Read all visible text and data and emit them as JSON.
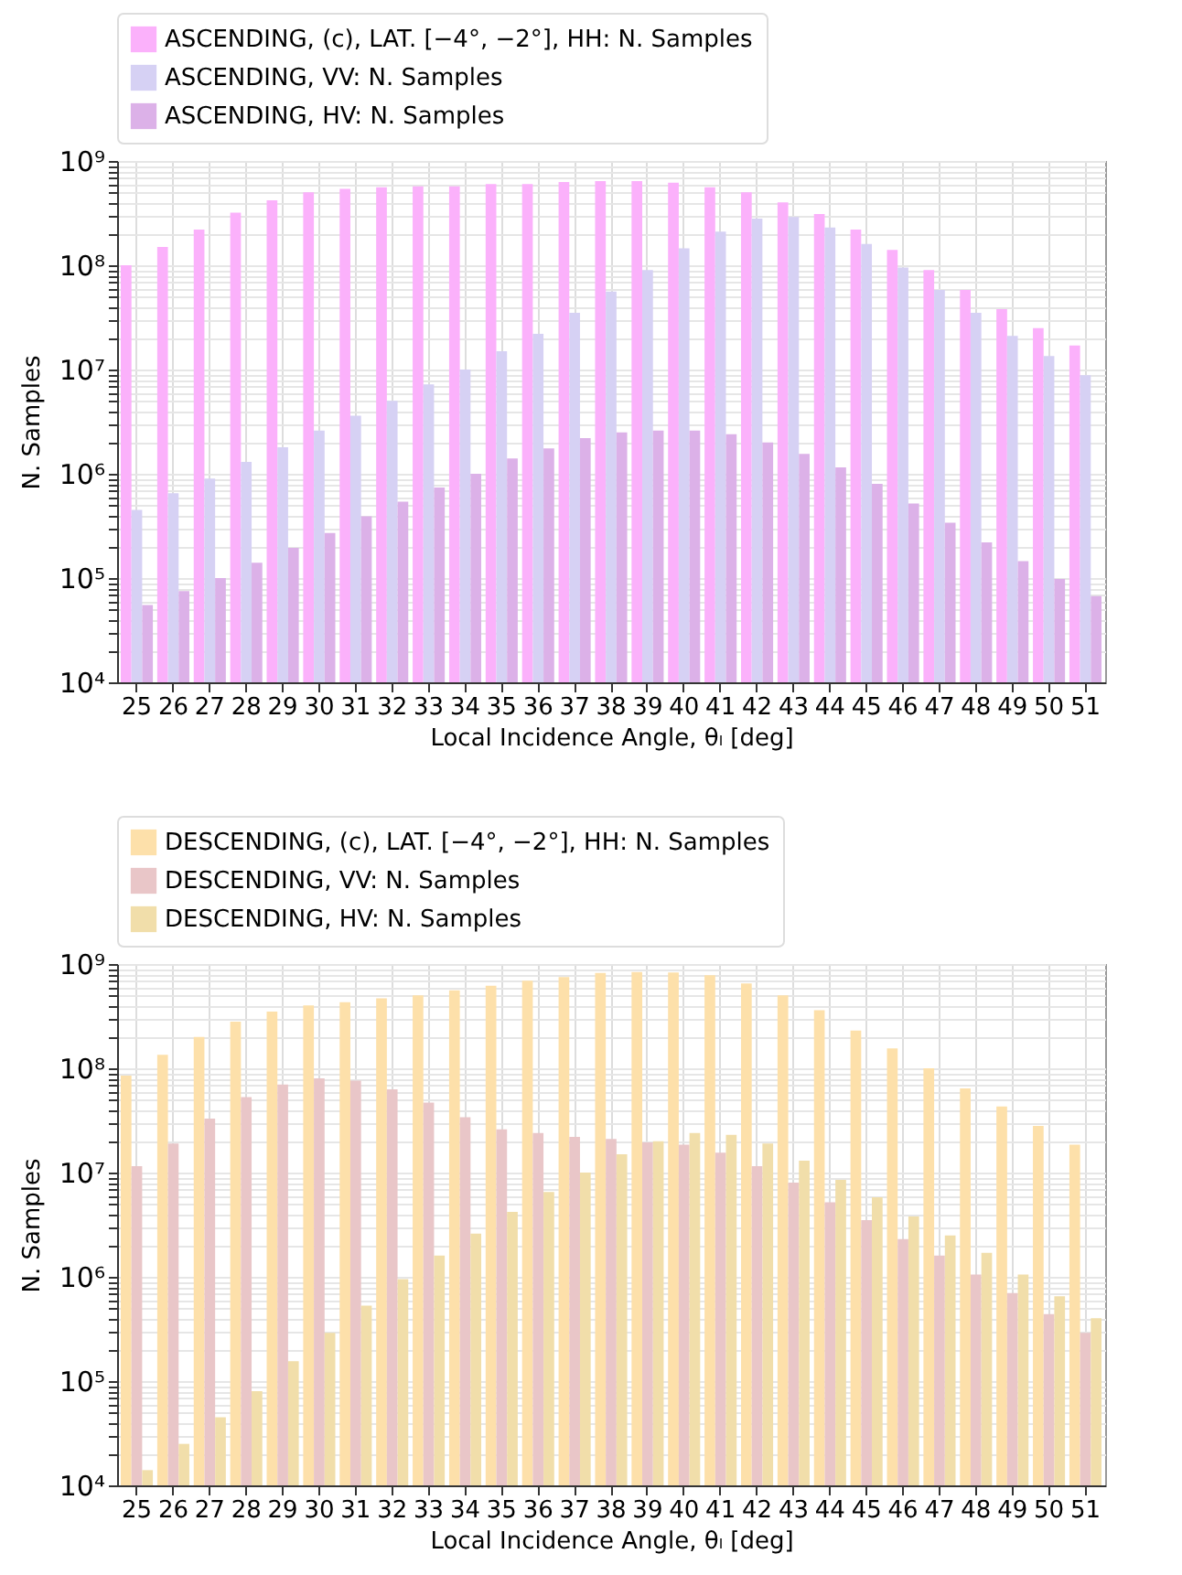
{
  "chart_data": [
    {
      "type": "bar",
      "xlabel": "Local Incidence Angle, θₗ [deg]",
      "ylabel": "N. Samples",
      "log": true,
      "grid": true,
      "legend": "top left",
      "categories": [
        "25",
        "26",
        "27",
        "28",
        "29",
        "30",
        "31",
        "32",
        "33",
        "34",
        "35",
        "36",
        "37",
        "38",
        "39",
        "40",
        "41",
        "42",
        "43",
        "44",
        "45",
        "46",
        "47",
        "48",
        "49",
        "50",
        "51"
      ],
      "ylim": [
        10000,
        1000000000
      ],
      "yticks": [
        {
          "value": 10000,
          "label": "10⁴"
        },
        {
          "value": 20000,
          "label": null
        },
        {
          "value": 30000,
          "label": null
        },
        {
          "value": 40000,
          "label": null
        },
        {
          "value": 50000,
          "label": null
        },
        {
          "value": 60000,
          "label": null
        },
        {
          "value": 70000,
          "label": null
        },
        {
          "value": 80000,
          "label": null
        },
        {
          "value": 90000,
          "label": null
        },
        {
          "value": 100000,
          "label": "10⁵"
        },
        {
          "value": 200000,
          "label": null
        },
        {
          "value": 300000,
          "label": null
        },
        {
          "value": 400000,
          "label": null
        },
        {
          "value": 500000,
          "label": null
        },
        {
          "value": 600000,
          "label": null
        },
        {
          "value": 700000,
          "label": null
        },
        {
          "value": 800000,
          "label": null
        },
        {
          "value": 900000,
          "label": null
        },
        {
          "value": 1000000,
          "label": "10⁶"
        },
        {
          "value": 2000000,
          "label": null
        },
        {
          "value": 3000000,
          "label": null
        },
        {
          "value": 4000000,
          "label": null
        },
        {
          "value": 5000000,
          "label": null
        },
        {
          "value": 6000000,
          "label": null
        },
        {
          "value": 7000000,
          "label": null
        },
        {
          "value": 8000000,
          "label": null
        },
        {
          "value": 9000000,
          "label": null
        },
        {
          "value": 10000000,
          "label": "10⁷"
        },
        {
          "value": 20000000,
          "label": null
        },
        {
          "value": 30000000,
          "label": null
        },
        {
          "value": 40000000,
          "label": null
        },
        {
          "value": 50000000,
          "label": null
        },
        {
          "value": 60000000,
          "label": null
        },
        {
          "value": 70000000,
          "label": null
        },
        {
          "value": 80000000,
          "label": null
        },
        {
          "value": 90000000,
          "label": null
        },
        {
          "value": 100000000,
          "label": "10⁸"
        },
        {
          "value": 200000000,
          "label": null
        },
        {
          "value": 300000000,
          "label": null
        },
        {
          "value": 400000000,
          "label": null
        },
        {
          "value": 500000000,
          "label": null
        },
        {
          "value": 600000000,
          "label": null
        },
        {
          "value": 700000000,
          "label": null
        },
        {
          "value": 800000000,
          "label": null
        },
        {
          "value": 900000000,
          "label": null
        },
        {
          "value": 1000000000,
          "label": "10⁹"
        }
      ],
      "series": [
        {
          "name": "ASCENDING, (c), LAT. [−4°, −2°], HH: N. Samples",
          "color": "#fbb1fb",
          "values": [
            100000000.0,
            150000000.0,
            220000000.0,
            320000000.0,
            420000000.0,
            500000000.0,
            540000000.0,
            560000000.0,
            570000000.0,
            570000000.0,
            600000000.0,
            600000000.0,
            630000000.0,
            640000000.0,
            640000000.0,
            620000000.0,
            560000000.0,
            500000000.0,
            400000000.0,
            310000000.0,
            220000000.0,
            140000000.0,
            90000000.0,
            58000000.0,
            38000000.0,
            25000000.0,
            17000000.0
          ]
        },
        {
          "name": "ASCENDING, VV: N. Samples",
          "color": "#d6d1f4",
          "values": [
            450000.0,
            650000.0,
            900000.0,
            1300000.0,
            1800000.0,
            2600000.0,
            3600000.0,
            5000000.0,
            7200000.0,
            10000000.0,
            15000000.0,
            22000000.0,
            35000000.0,
            56000000.0,
            90000000.0,
            145000000.0,
            210000000.0,
            280000000.0,
            290000000.0,
            230000000.0,
            160000000.0,
            95000000.0,
            58000000.0,
            35000000.0,
            21000000.0,
            13500000.0,
            8800000.0
          ]
        },
        {
          "name": "ASCENDING, HV: N. Samples",
          "color": "#dcb1e8",
          "values": [
            55000.0,
            75000.0,
            100000.0,
            140000.0,
            195000.0,
            270000.0,
            390000.0,
            540000.0,
            740000.0,
            1000000.0,
            1400000.0,
            1750000.0,
            2200000.0,
            2500000.0,
            2600000.0,
            2600000.0,
            2400000.0,
            2000000.0,
            1550000.0,
            1150000.0,
            800000.0,
            520000.0,
            340000.0,
            220000.0,
            145000.0,
            98000.0,
            67000.0
          ]
        }
      ]
    },
    {
      "type": "bar",
      "xlabel": "Local Incidence Angle, θₗ [deg]",
      "ylabel": "N. Samples",
      "log": true,
      "grid": true,
      "legend": "top left",
      "categories": [
        "25",
        "26",
        "27",
        "28",
        "29",
        "30",
        "31",
        "32",
        "33",
        "34",
        "35",
        "36",
        "37",
        "38",
        "39",
        "40",
        "41",
        "42",
        "43",
        "44",
        "45",
        "46",
        "47",
        "48",
        "49",
        "50",
        "51"
      ],
      "ylim": [
        10000,
        1000000000
      ],
      "yticks": [
        {
          "value": 10000,
          "label": "10⁴"
        },
        {
          "value": 20000,
          "label": null
        },
        {
          "value": 30000,
          "label": null
        },
        {
          "value": 40000,
          "label": null
        },
        {
          "value": 50000,
          "label": null
        },
        {
          "value": 60000,
          "label": null
        },
        {
          "value": 70000,
          "label": null
        },
        {
          "value": 80000,
          "label": null
        },
        {
          "value": 90000,
          "label": null
        },
        {
          "value": 100000,
          "label": "10⁵"
        },
        {
          "value": 200000,
          "label": null
        },
        {
          "value": 300000,
          "label": null
        },
        {
          "value": 400000,
          "label": null
        },
        {
          "value": 500000,
          "label": null
        },
        {
          "value": 600000,
          "label": null
        },
        {
          "value": 700000,
          "label": null
        },
        {
          "value": 800000,
          "label": null
        },
        {
          "value": 900000,
          "label": null
        },
        {
          "value": 1000000,
          "label": "10⁶"
        },
        {
          "value": 2000000,
          "label": null
        },
        {
          "value": 3000000,
          "label": null
        },
        {
          "value": 4000000,
          "label": null
        },
        {
          "value": 5000000,
          "label": null
        },
        {
          "value": 6000000,
          "label": null
        },
        {
          "value": 7000000,
          "label": null
        },
        {
          "value": 8000000,
          "label": null
        },
        {
          "value": 9000000,
          "label": null
        },
        {
          "value": 10000000,
          "label": "10⁷"
        },
        {
          "value": 20000000,
          "label": null
        },
        {
          "value": 30000000,
          "label": null
        },
        {
          "value": 40000000,
          "label": null
        },
        {
          "value": 50000000,
          "label": null
        },
        {
          "value": 60000000,
          "label": null
        },
        {
          "value": 70000000,
          "label": null
        },
        {
          "value": 80000000,
          "label": null
        },
        {
          "value": 90000000,
          "label": null
        },
        {
          "value": 100000000,
          "label": "10⁸"
        },
        {
          "value": 200000000,
          "label": null
        },
        {
          "value": 300000000,
          "label": null
        },
        {
          "value": 400000000,
          "label": null
        },
        {
          "value": 500000000,
          "label": null
        },
        {
          "value": 600000000,
          "label": null
        },
        {
          "value": 700000000,
          "label": null
        },
        {
          "value": 800000000,
          "label": null
        },
        {
          "value": 900000000,
          "label": null
        },
        {
          "value": 1000000000,
          "label": "10⁹"
        }
      ],
      "series": [
        {
          "name": "DESCENDING, (c), LAT. [−4°, −2°], HH: N. Samples",
          "color": "#fde0aa",
          "values": [
            85000000.0,
            135000000.0,
            200000000.0,
            280000000.0,
            350000000.0,
            400000000.0,
            430000000.0,
            470000000.0,
            500000000.0,
            560000000.0,
            620000000.0,
            690000000.0,
            750000000.0,
            820000000.0,
            840000000.0,
            830000000.0,
            780000000.0,
            650000000.0,
            500000000.0,
            360000000.0,
            230000000.0,
            155000000.0,
            100000000.0,
            64000000.0,
            43000000.0,
            28000000.0,
            18500000.0
          ]
        },
        {
          "name": "DESCENDING, VV: N. Samples",
          "color": "#e9c6c8",
          "values": [
            11500000.0,
            19000000.0,
            33000000.0,
            53000000.0,
            70000000.0,
            80000000.0,
            76000000.0,
            63000000.0,
            47000000.0,
            34000000.0,
            26000000.0,
            24000000.0,
            22000000.0,
            21000000.0,
            19500000.0,
            18500000.0,
            15500000.0,
            11500000.0,
            8000000.0,
            5200000.0,
            3500000.0,
            2300000.0,
            1600000.0,
            1050000.0,
            700000.0,
            440000.0,
            290000.0
          ]
        },
        {
          "name": "DESCENDING, HV: N. Samples",
          "color": "#f1deaa",
          "values": [
            14000.0,
            25000.0,
            45000.0,
            80000.0,
            155000.0,
            290000.0,
            530000.0,
            950000.0,
            1600000.0,
            2600000.0,
            4200000.0,
            6500000.0,
            10000000.0,
            15000000.0,
            20000000.0,
            24000000.0,
            23000000.0,
            19000000.0,
            13000000.0,
            8500000.0,
            5800000.0,
            3800000.0,
            2500000.0,
            1700000.0,
            1050000.0,
            650000.0,
            400000.0
          ]
        }
      ]
    }
  ]
}
